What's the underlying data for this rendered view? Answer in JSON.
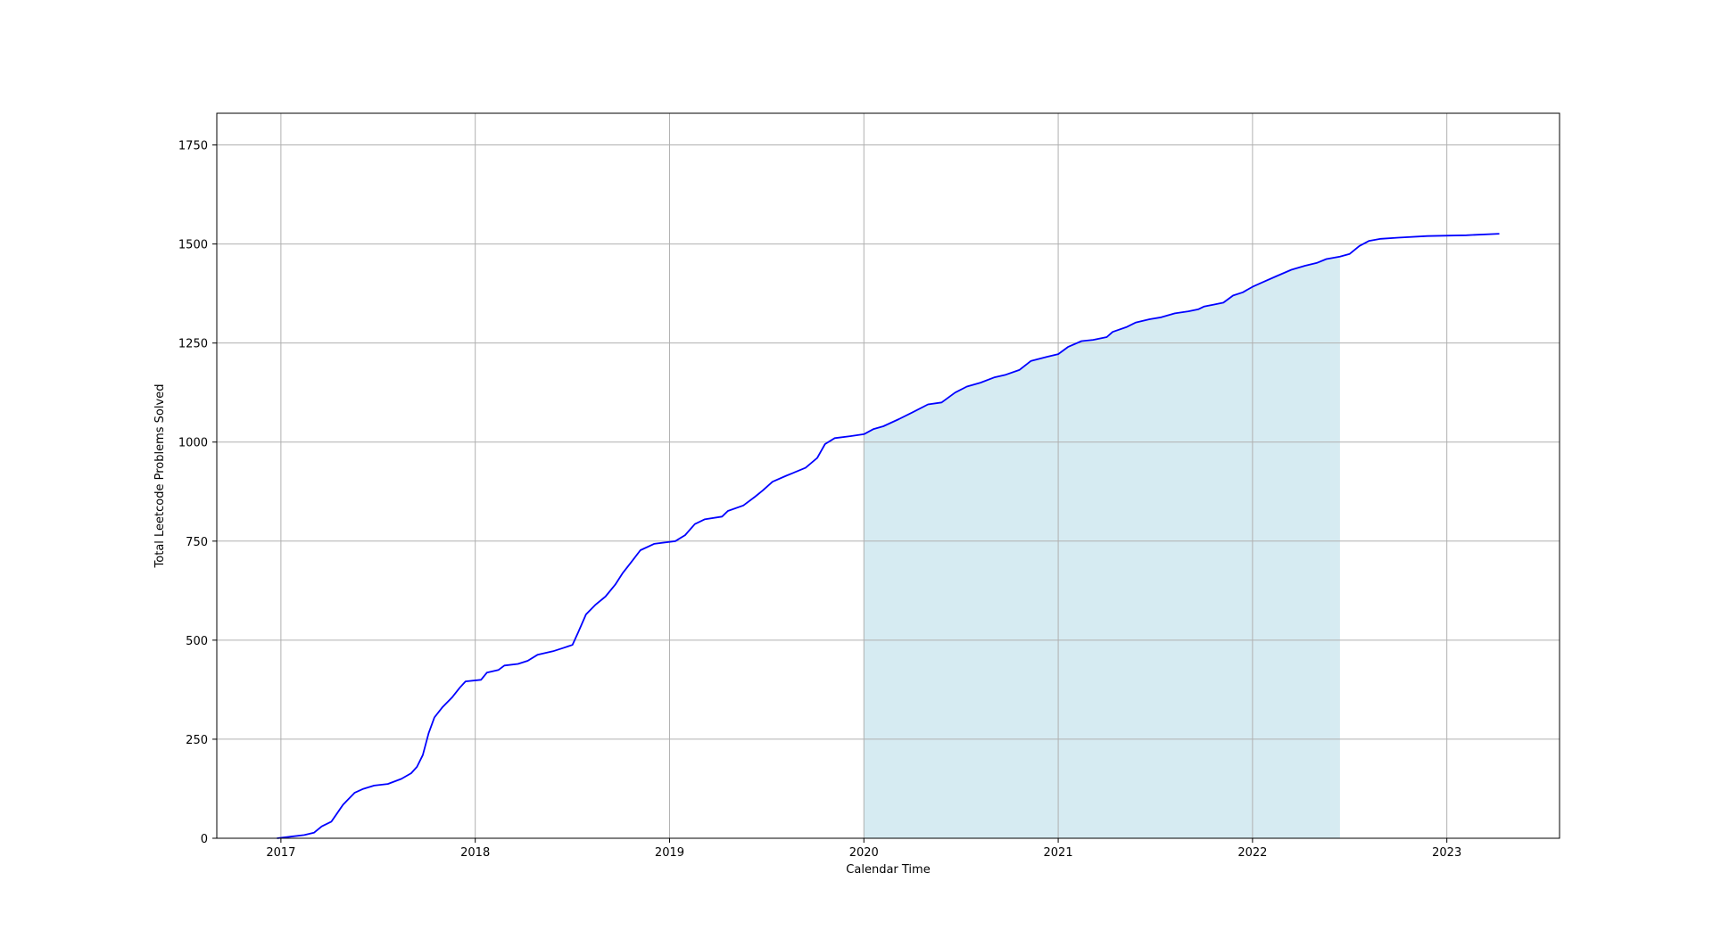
{
  "chart_data": {
    "type": "line",
    "title": "",
    "xlabel": "Calendar Time",
    "ylabel": "Total Leetcode Problems Solved",
    "x_ticks": [
      "2017",
      "2018",
      "2019",
      "2020",
      "2021",
      "2022",
      "2023"
    ],
    "y_ticks": [
      "0",
      "250",
      "500",
      "750",
      "1000",
      "1250",
      "1500",
      "1750"
    ],
    "xlim": [
      2016.67,
      2023.58
    ],
    "ylim": [
      0,
      1830
    ],
    "grid": true,
    "line_color": "#0000ff",
    "shade_color": "#add8e6",
    "shaded_region": {
      "from": 2020.0,
      "to": 2022.45
    },
    "series": [
      {
        "points": [
          [
            2016.98,
            0
          ],
          [
            2017.05,
            4
          ],
          [
            2017.12,
            8
          ],
          [
            2017.17,
            14
          ],
          [
            2017.21,
            30
          ],
          [
            2017.26,
            42
          ],
          [
            2017.32,
            85
          ],
          [
            2017.38,
            115
          ],
          [
            2017.42,
            124
          ],
          [
            2017.48,
            133
          ],
          [
            2017.55,
            137
          ],
          [
            2017.62,
            150
          ],
          [
            2017.67,
            164
          ],
          [
            2017.7,
            180
          ],
          [
            2017.73,
            210
          ],
          [
            2017.76,
            265
          ],
          [
            2017.79,
            305
          ],
          [
            2017.83,
            330
          ],
          [
            2017.88,
            355
          ],
          [
            2017.92,
            380
          ],
          [
            2017.95,
            396
          ],
          [
            2018.03,
            400
          ],
          [
            2018.06,
            418
          ],
          [
            2018.12,
            425
          ],
          [
            2018.15,
            436
          ],
          [
            2018.22,
            440
          ],
          [
            2018.27,
            448
          ],
          [
            2018.32,
            463
          ],
          [
            2018.4,
            472
          ],
          [
            2018.45,
            480
          ],
          [
            2018.5,
            488
          ],
          [
            2018.53,
            520
          ],
          [
            2018.57,
            565
          ],
          [
            2018.62,
            590
          ],
          [
            2018.67,
            610
          ],
          [
            2018.72,
            640
          ],
          [
            2018.76,
            670
          ],
          [
            2018.8,
            695
          ],
          [
            2018.85,
            727
          ],
          [
            2018.92,
            743
          ],
          [
            2019.03,
            750
          ],
          [
            2019.08,
            765
          ],
          [
            2019.13,
            793
          ],
          [
            2019.18,
            805
          ],
          [
            2019.27,
            812
          ],
          [
            2019.3,
            826
          ],
          [
            2019.38,
            840
          ],
          [
            2019.44,
            862
          ],
          [
            2019.48,
            878
          ],
          [
            2019.53,
            900
          ],
          [
            2019.6,
            915
          ],
          [
            2019.65,
            925
          ],
          [
            2019.7,
            935
          ],
          [
            2019.76,
            960
          ],
          [
            2019.8,
            995
          ],
          [
            2019.85,
            1010
          ],
          [
            2019.93,
            1015
          ],
          [
            2020.0,
            1020
          ],
          [
            2020.05,
            1033
          ],
          [
            2020.1,
            1040
          ],
          [
            2020.18,
            1058
          ],
          [
            2020.25,
            1075
          ],
          [
            2020.33,
            1095
          ],
          [
            2020.4,
            1100
          ],
          [
            2020.47,
            1125
          ],
          [
            2020.53,
            1140
          ],
          [
            2020.6,
            1150
          ],
          [
            2020.67,
            1163
          ],
          [
            2020.73,
            1170
          ],
          [
            2020.8,
            1182
          ],
          [
            2020.86,
            1205
          ],
          [
            2020.94,
            1215
          ],
          [
            2021.0,
            1222
          ],
          [
            2021.05,
            1240
          ],
          [
            2021.12,
            1255
          ],
          [
            2021.18,
            1258
          ],
          [
            2021.25,
            1265
          ],
          [
            2021.28,
            1278
          ],
          [
            2021.35,
            1290
          ],
          [
            2021.4,
            1302
          ],
          [
            2021.47,
            1310
          ],
          [
            2021.53,
            1315
          ],
          [
            2021.6,
            1325
          ],
          [
            2021.67,
            1330
          ],
          [
            2021.72,
            1335
          ],
          [
            2021.75,
            1342
          ],
          [
            2021.8,
            1347
          ],
          [
            2021.85,
            1352
          ],
          [
            2021.9,
            1370
          ],
          [
            2021.95,
            1378
          ],
          [
            2022.0,
            1392
          ],
          [
            2022.05,
            1403
          ],
          [
            2022.12,
            1418
          ],
          [
            2022.2,
            1435
          ],
          [
            2022.27,
            1445
          ],
          [
            2022.33,
            1452
          ],
          [
            2022.38,
            1462
          ],
          [
            2022.45,
            1468
          ],
          [
            2022.5,
            1475
          ],
          [
            2022.55,
            1495
          ],
          [
            2022.6,
            1508
          ],
          [
            2022.66,
            1513
          ],
          [
            2022.75,
            1516
          ],
          [
            2022.9,
            1520
          ],
          [
            2023.1,
            1522
          ],
          [
            2023.27,
            1526
          ]
        ]
      }
    ]
  }
}
